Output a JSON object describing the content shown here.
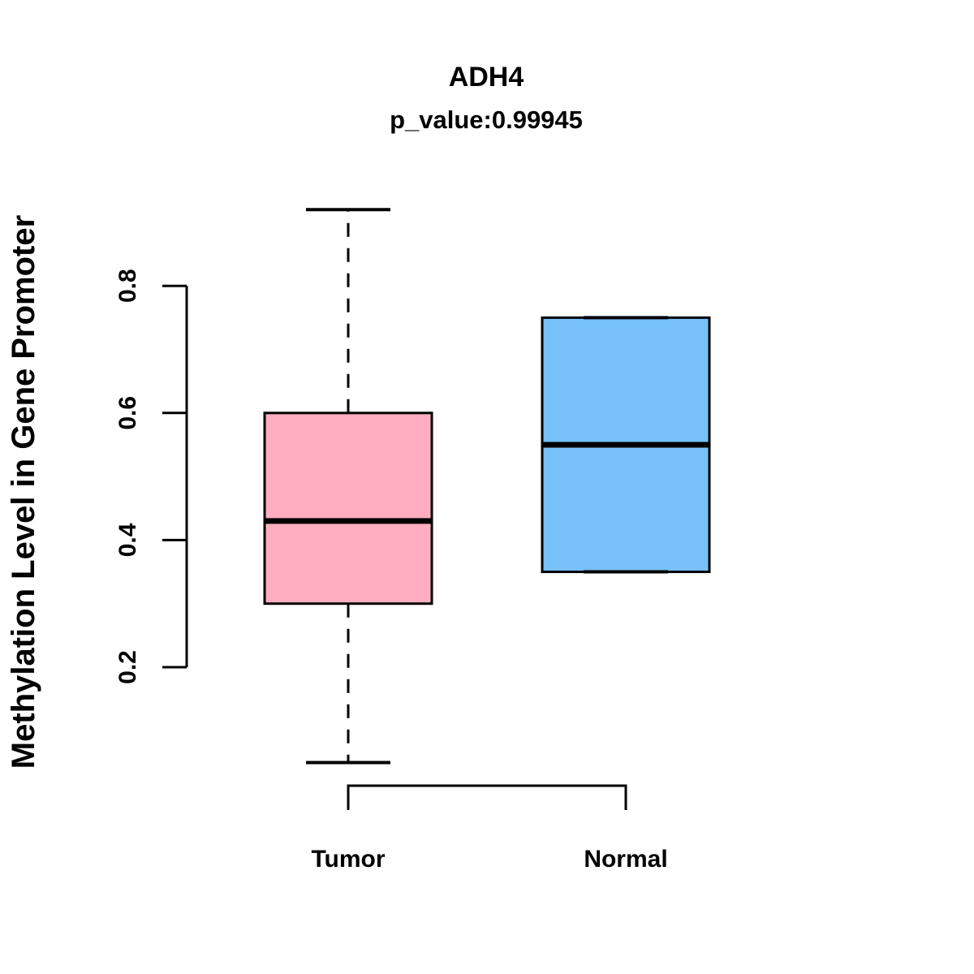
{
  "chart_data": {
    "type": "boxplot",
    "title": "ADH4",
    "subtitle": "p_value:0.99945",
    "ylabel": "Methylation Level in Gene Promoter",
    "xlabel": "",
    "categories": [
      "Tumor",
      "Normal"
    ],
    "yticks": [
      "0.2",
      "0.4",
      "0.6",
      "0.8"
    ],
    "ylim": [
      0.04,
      0.95
    ],
    "grid": false,
    "legend": false,
    "colors": {
      "box_line": "#000000",
      "background": "#FFFFFF"
    },
    "series": [
      {
        "name": "Tumor",
        "fill": "#FFAEC1",
        "q1": 0.3,
        "median": 0.43,
        "q3": 0.6,
        "whisker_low": 0.05,
        "whisker_high": 0.92
      },
      {
        "name": "Normal",
        "fill": "#77C0F8",
        "q1": 0.35,
        "median": 0.55,
        "q3": 0.75,
        "whisker_low": 0.35,
        "whisker_high": 0.75
      }
    ]
  }
}
